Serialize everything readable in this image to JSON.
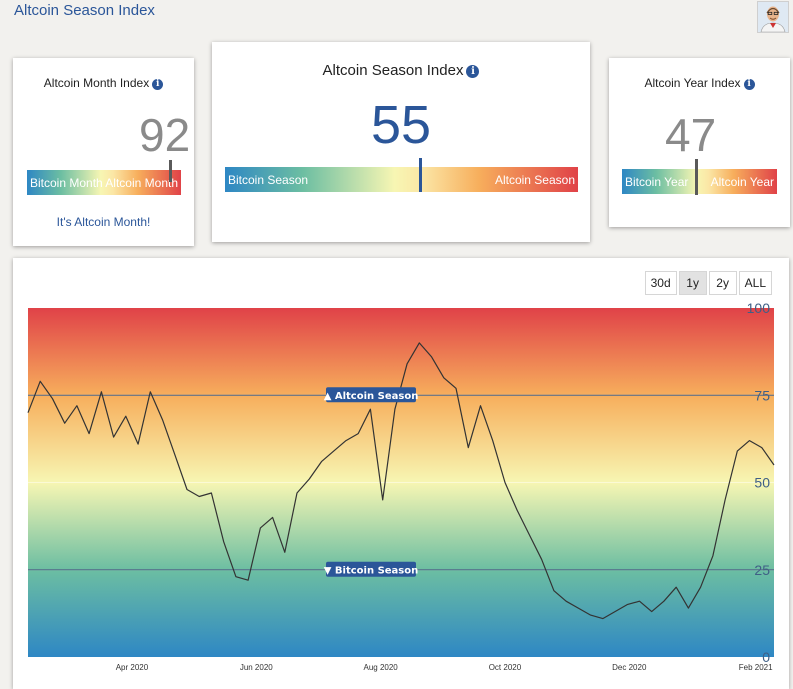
{
  "page_title": "Altcoin Season Index",
  "month_index": {
    "title": "Altcoin Month Index",
    "value": "92",
    "left_label": "Bitcoin Month",
    "right_label": "Altcoin Month",
    "level": 0.92,
    "message": "It's Altcoin Month!"
  },
  "season_index": {
    "title": "Altcoin Season Index",
    "value": "55",
    "left_label": "Bitcoin Season",
    "right_label": "Altcoin Season",
    "level": 0.55,
    "accent": "#2b5699"
  },
  "year_index": {
    "title": "Altcoin Year Index",
    "value": "47",
    "left_label": "Bitcoin Year",
    "right_label": "Altcoin Year",
    "level": 0.47
  },
  "range_buttons": [
    "30d",
    "1y",
    "2y",
    "ALL"
  ],
  "active_range": "1y",
  "info_icon": "info-icon",
  "chart_data": {
    "type": "line",
    "x_ticks": [
      "Apr 2020",
      "Jun 2020",
      "Aug 2020",
      "Oct 2020",
      "Dec 2020",
      "Feb 2021"
    ],
    "y_ticks": [
      0,
      25,
      50,
      75,
      100
    ],
    "ylim": [
      0,
      100
    ],
    "thresholds": [
      {
        "label": "▲ Altcoin Season",
        "value": 75
      },
      {
        "label": "▼ Bitcoin Season",
        "value": 25
      }
    ],
    "background_colors": [
      "#2e87c4",
      "#6cbea2",
      "#f7f6b3",
      "#f7ae5c",
      "#e04248"
    ],
    "series": [
      {
        "color": "#333333",
        "x": [
          "2020-02-10",
          "2020-02-16",
          "2020-02-22",
          "2020-02-28",
          "2020-03-05",
          "2020-03-11",
          "2020-03-17",
          "2020-03-23",
          "2020-03-29",
          "2020-04-04",
          "2020-04-10",
          "2020-04-16",
          "2020-04-22",
          "2020-04-28",
          "2020-05-04",
          "2020-05-10",
          "2020-05-16",
          "2020-05-22",
          "2020-05-28",
          "2020-06-03",
          "2020-06-09",
          "2020-06-15",
          "2020-06-21",
          "2020-06-27",
          "2020-07-03",
          "2020-07-09",
          "2020-07-15",
          "2020-07-21",
          "2020-07-27",
          "2020-08-02",
          "2020-08-08",
          "2020-08-14",
          "2020-08-20",
          "2020-08-26",
          "2020-09-01",
          "2020-09-07",
          "2020-09-13",
          "2020-09-19",
          "2020-09-25",
          "2020-10-01",
          "2020-10-07",
          "2020-10-13",
          "2020-10-19",
          "2020-10-25",
          "2020-10-31",
          "2020-11-06",
          "2020-11-12",
          "2020-11-18",
          "2020-11-24",
          "2020-11-30",
          "2020-12-06",
          "2020-12-12",
          "2020-12-18",
          "2020-12-24",
          "2020-12-30",
          "2021-01-05",
          "2021-01-11",
          "2021-01-17",
          "2021-01-23",
          "2021-01-29",
          "2021-02-04",
          "2021-02-10"
        ],
        "values": [
          70,
          79,
          74,
          67,
          72,
          64,
          76,
          63,
          69,
          61,
          76,
          68,
          58,
          48,
          46,
          47,
          33,
          23,
          22,
          37,
          40,
          30,
          47,
          51,
          56,
          59,
          62,
          64,
          71,
          45,
          71,
          84,
          90,
          86,
          80,
          77,
          60,
          72,
          62,
          50,
          42,
          35,
          28,
          19,
          16,
          14,
          12,
          11,
          13,
          15,
          16,
          13,
          16,
          20,
          14,
          20,
          29,
          45,
          59,
          62,
          60,
          55
        ]
      }
    ]
  }
}
